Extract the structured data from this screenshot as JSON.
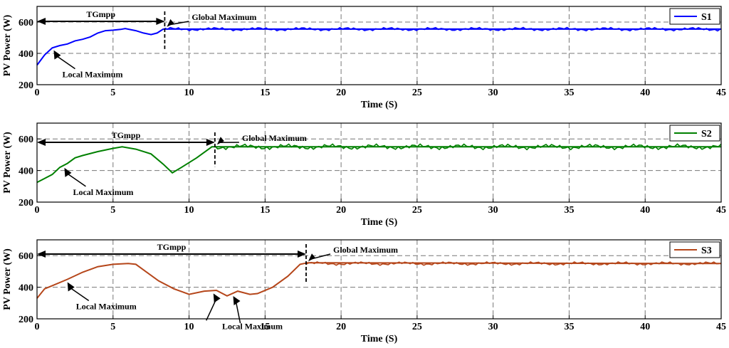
{
  "chart_data": [
    {
      "type": "line",
      "xlabel": "Time (S)",
      "ylabel": "PV Power (W)",
      "xlim": [
        0,
        45
      ],
      "ylim": [
        200,
        700
      ],
      "xticks": [
        0,
        5,
        10,
        15,
        20,
        25,
        30,
        35,
        40,
        45
      ],
      "yticks": [
        200,
        400,
        600
      ],
      "grid": true,
      "legend_position": "top-right",
      "color": "#0000ff",
      "series": [
        {
          "name": "S1",
          "x": [
            0,
            0.5,
            1,
            1.5,
            2,
            2.5,
            3,
            3.5,
            4,
            4.5,
            5,
            5.5,
            5.8,
            6.5,
            7,
            7.5,
            7.9,
            8.3,
            9,
            45
          ],
          "values": [
            325,
            390,
            435,
            450,
            460,
            480,
            490,
            505,
            530,
            545,
            548,
            553,
            558,
            545,
            530,
            520,
            530,
            555,
            555,
            555
          ],
          "steady_state": 555
        }
      ],
      "annotations": [
        {
          "label": "TGmpp",
          "from": 0,
          "to": 8.4
        },
        {
          "label": "Global Maximum",
          "x": 8.4
        },
        {
          "label": "Local Maximum",
          "x": 1.1
        }
      ]
    },
    {
      "type": "line",
      "xlabel": "Time (S)",
      "ylabel": "PV Power (W)",
      "xlim": [
        0,
        45
      ],
      "ylim": [
        200,
        700
      ],
      "xticks": [
        0,
        5,
        10,
        15,
        20,
        25,
        30,
        35,
        40,
        45
      ],
      "yticks": [
        200,
        400,
        600
      ],
      "grid": true,
      "legend_position": "top-right",
      "color": "#008000",
      "series": [
        {
          "name": "S2",
          "x": [
            0,
            0.5,
            1,
            1.5,
            2,
            2.5,
            3,
            4,
            5,
            5.6,
            6.5,
            7.5,
            8.3,
            8.9,
            9.5,
            10.5,
            11.5,
            12,
            45
          ],
          "values": [
            325,
            350,
            375,
            420,
            445,
            480,
            495,
            520,
            540,
            550,
            535,
            505,
            440,
            385,
            420,
            480,
            550,
            550,
            550
          ],
          "steady_state": 550
        }
      ],
      "annotations": [
        {
          "label": "TGmpp",
          "from": 0,
          "to": 11.7
        },
        {
          "label": "Global Maximum",
          "x": 11.7
        },
        {
          "label": "Local Maximum",
          "x": 1.8
        }
      ]
    },
    {
      "type": "line",
      "xlabel": "Time (S)",
      "ylabel": "PV Power (W)",
      "xlim": [
        0,
        45
      ],
      "ylim": [
        200,
        700
      ],
      "xticks": [
        0,
        5,
        10,
        15,
        20,
        25,
        30,
        35,
        40,
        45
      ],
      "yticks": [
        200,
        400,
        600
      ],
      "grid": true,
      "legend_position": "top-right",
      "color": "#b5461a",
      "series": [
        {
          "name": "S3",
          "x": [
            0,
            0.5,
            1,
            2,
            3,
            4,
            5,
            6,
            6.5,
            7,
            8,
            9,
            10,
            11,
            11.8,
            12.5,
            13.2,
            14,
            14.5,
            15.5,
            16.5,
            17.3,
            17.8,
            45
          ],
          "values": [
            330,
            390,
            410,
            450,
            495,
            530,
            545,
            550,
            545,
            510,
            440,
            390,
            355,
            375,
            380,
            345,
            375,
            355,
            360,
            400,
            470,
            545,
            555,
            550
          ],
          "steady_state": 550
        }
      ],
      "annotations": [
        {
          "label": "TGmpp",
          "from": 0,
          "to": 17.7
        },
        {
          "label": "Global Maximum",
          "x": 17.7
        },
        {
          "label": "Local Maximum",
          "x": 2.0
        },
        {
          "label": "Local Maximum",
          "x": 11.6
        },
        {
          "label": "Local Maximum",
          "x": 12.9
        }
      ]
    }
  ]
}
